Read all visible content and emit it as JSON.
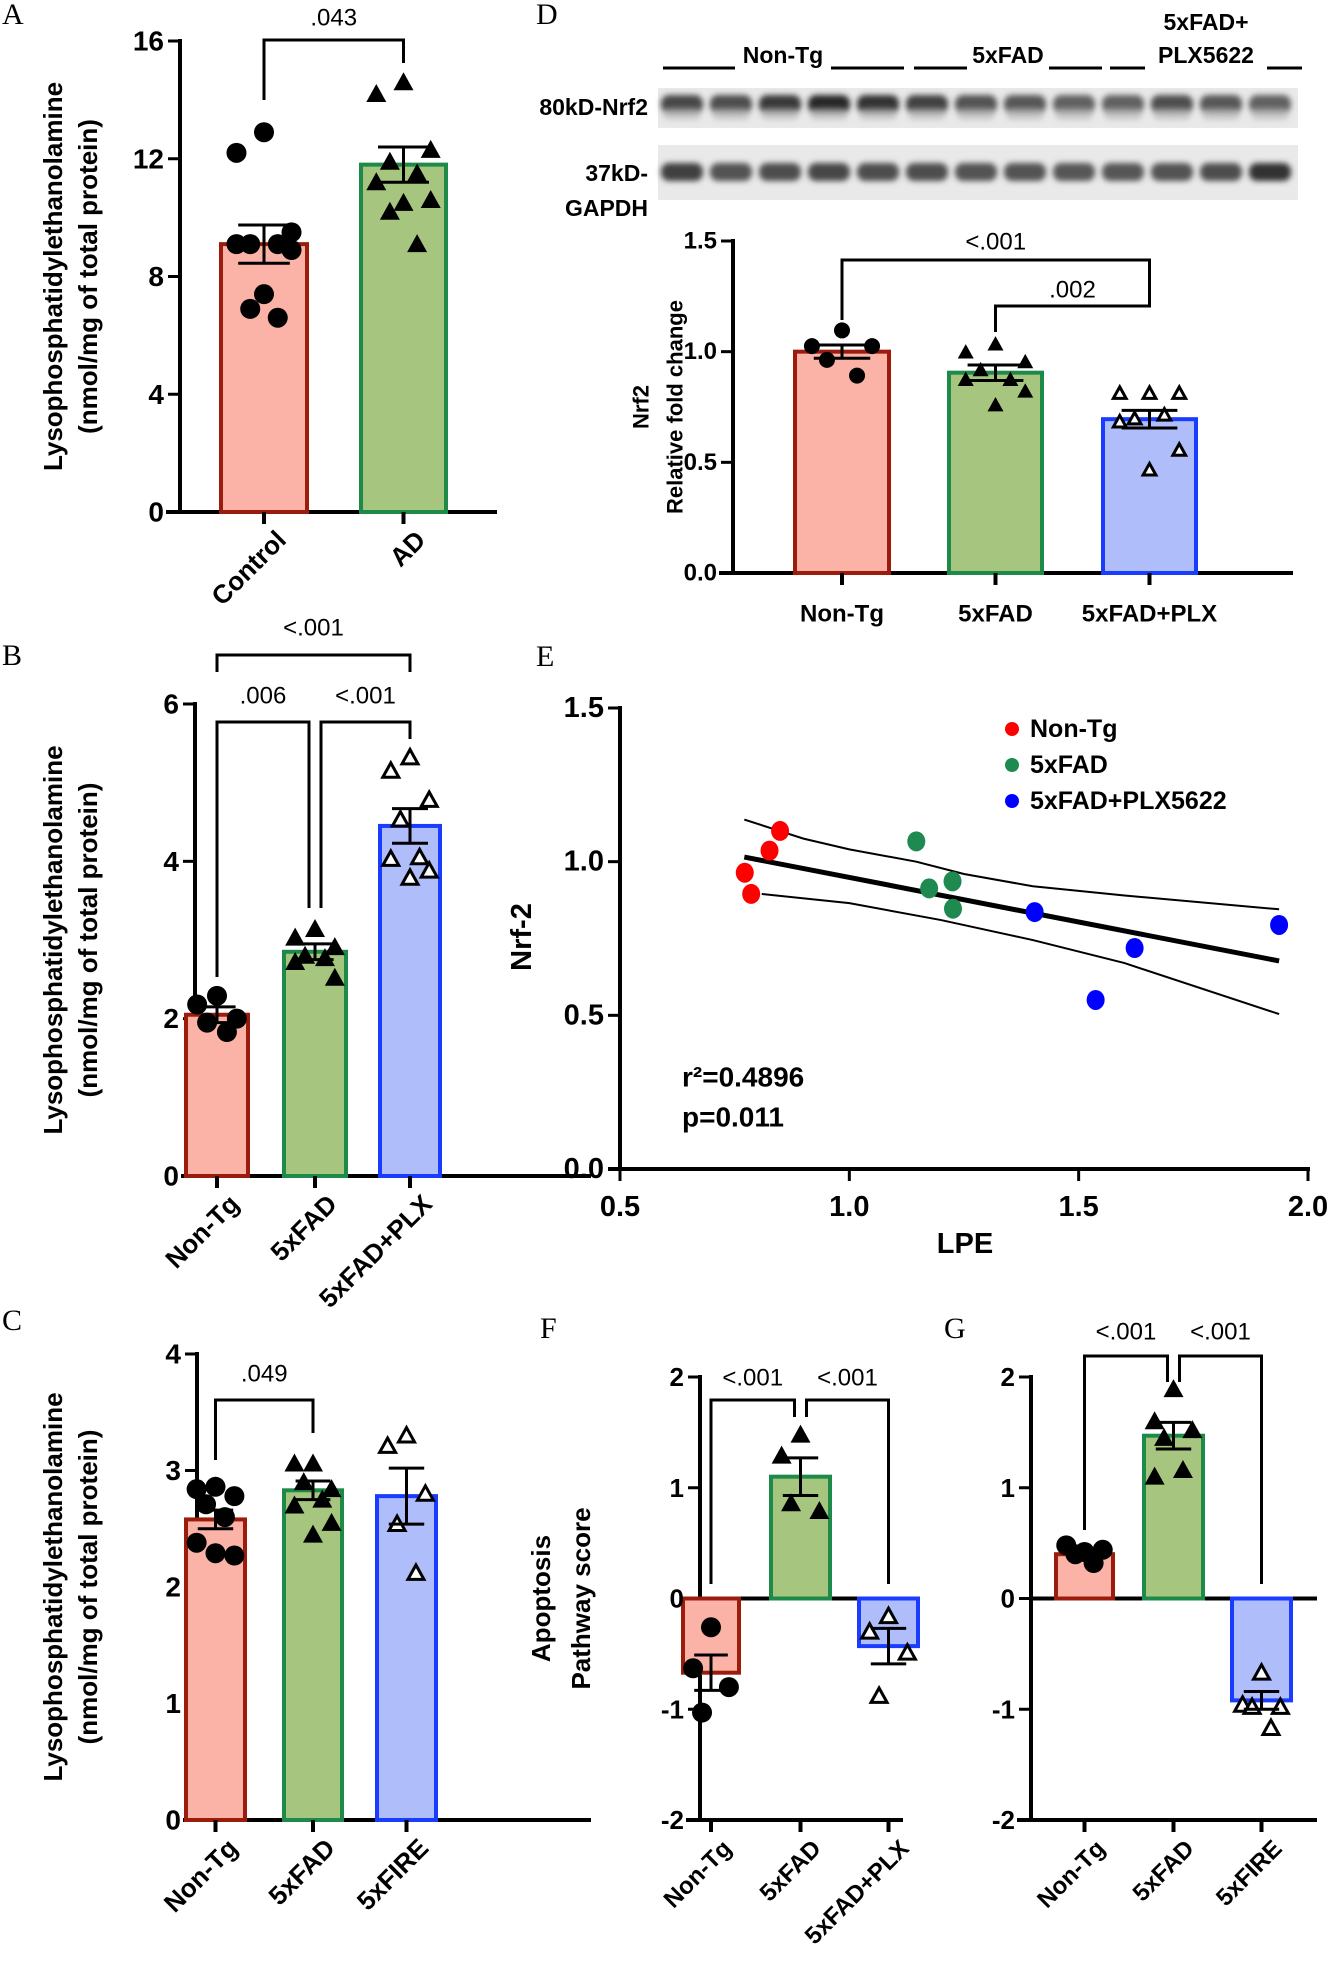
{
  "panel_labels": {
    "A": "A",
    "B": "B",
    "C": "C",
    "D": "D",
    "E": "E",
    "F": "F",
    "G": "G"
  },
  "colors": {
    "red_fill": "#fbb3a8",
    "red_stroke": "#9b1c0c",
    "green_fill": "#a6c67f",
    "green_stroke": "#1e8a4a",
    "blue_fill": "#afbdfb",
    "blue_stroke": "#1a3cff",
    "scatter_red": "#ff0000",
    "scatter_green": "#1f8a4f",
    "scatter_blue": "#0000ff"
  },
  "blot": {
    "groups": [
      {
        "label": "Non-Tg"
      },
      {
        "label": "5xFAD"
      },
      {
        "label_line1": "5xFAD+",
        "label": "PLX5622"
      }
    ],
    "rows": [
      {
        "label": "80kD-Nrf2"
      },
      {
        "label_line1": "37kD-",
        "label": "GAPDH"
      }
    ]
  },
  "chart_data": [
    {
      "id": "A",
      "type": "bar",
      "categories": [
        "Control",
        "AD"
      ],
      "means": [
        9.1,
        11.8
      ],
      "sem": [
        0.65,
        0.6
      ],
      "colors": [
        "red",
        "green"
      ],
      "markers": [
        "circle",
        "triangle"
      ],
      "points": [
        [
          12.9,
          12.2,
          9.5,
          9.1,
          9.1,
          9.1,
          8.9,
          7.4,
          6.9,
          6.6
        ],
        [
          14.6,
          14.2,
          12.3,
          11.9,
          11.5,
          11.2,
          10.6,
          10.5,
          10.2,
          9.1
        ]
      ],
      "ylim": [
        0,
        16
      ],
      "yticks": [
        "0",
        "4",
        "8",
        "12",
        "16"
      ],
      "ylabel": [
        "Lysophosphatidylethanolamine",
        "(nmol/mg of total protein)"
      ],
      "comparisons": [
        {
          "groups": [
            0,
            1
          ],
          "p": ".043"
        }
      ]
    },
    {
      "id": "B",
      "type": "bar",
      "categories": [
        "Non-Tg",
        "5xFAD",
        "5xFAD+PLX"
      ],
      "means": [
        2.05,
        2.85,
        4.45
      ],
      "sem": [
        0.1,
        0.1,
        0.22
      ],
      "colors": [
        "red",
        "green",
        "blue"
      ],
      "markers": [
        "circle",
        "triangle",
        "triangle-open"
      ],
      "points": [
        [
          2.29,
          2.18,
          2.0,
          1.95,
          1.83
        ],
        [
          3.14,
          3.03,
          2.91,
          2.8,
          2.77,
          2.72,
          2.52
        ],
        [
          5.32,
          5.15,
          4.78,
          4.53,
          4.05,
          4.03,
          3.88,
          3.79
        ]
      ],
      "ylim": [
        0,
        6
      ],
      "yticks": [
        "0",
        "2",
        "4",
        "6"
      ],
      "ylabel": [
        "Lysophosphatidylethanolamine",
        "(nmol/mg of total protein)"
      ],
      "comparisons": [
        {
          "groups": [
            0,
            2
          ],
          "p": "<.001"
        },
        {
          "groups": [
            0,
            1
          ],
          "p": ".006"
        },
        {
          "groups": [
            1,
            2
          ],
          "p": "<.001"
        }
      ]
    },
    {
      "id": "C",
      "type": "bar",
      "categories": [
        "Non-Tg",
        "5xFAD",
        "5xFIRE"
      ],
      "means": [
        2.58,
        2.83,
        2.78
      ],
      "sem": [
        0.08,
        0.08,
        0.24
      ],
      "colors": [
        "red",
        "green",
        "blue"
      ],
      "markers": [
        "circle",
        "triangle",
        "triangle-open"
      ],
      "points": [
        [
          2.86,
          2.84,
          2.78,
          2.71,
          2.6,
          2.38,
          2.27,
          2.29
        ],
        [
          3.06,
          3.06,
          2.84,
          2.9,
          2.75,
          2.7,
          2.55,
          2.45
        ],
        [
          3.3,
          3.21,
          2.8,
          2.54,
          2.12
        ]
      ],
      "ylim": [
        0,
        4
      ],
      "yticks": [
        "0",
        "1",
        "2",
        "3",
        "4"
      ],
      "ylabel": [
        "Lysophosphatidylethanolamine",
        "(nmol/mg of total protein)"
      ],
      "comparisons": [
        {
          "groups": [
            0,
            1
          ],
          "p": ".049"
        }
      ]
    },
    {
      "id": "D",
      "type": "bar",
      "categories": [
        "Non-Tg",
        "5xFAD",
        "5xFAD+PLX"
      ],
      "means": [
        1.0,
        0.905,
        0.695
      ],
      "sem": [
        0.03,
        0.035,
        0.04
      ],
      "colors": [
        "red",
        "green",
        "blue"
      ],
      "markers": [
        "circle",
        "triangle",
        "triangle-open"
      ],
      "points": [
        [
          1.096,
          1.025,
          1.025,
          0.963,
          0.892
        ],
        [
          1.034,
          0.998,
          0.954,
          0.918,
          0.874,
          0.874,
          0.821,
          0.759
        ],
        [
          0.812,
          0.812,
          0.812,
          0.697,
          0.714,
          0.683,
          0.555,
          0.466
        ]
      ],
      "ylim": [
        0,
        1.5
      ],
      "yticks": [
        "0.0",
        "0.5",
        "1.0",
        "1.5"
      ],
      "ylabel": [
        "Nrf2",
        "Relative fold change"
      ],
      "comparisons": [
        {
          "groups": [
            0,
            2
          ],
          "p": "<.001"
        },
        {
          "groups": [
            1,
            2
          ],
          "p": ".002"
        }
      ]
    },
    {
      "id": "E",
      "type": "scatter",
      "series": [
        {
          "name": "Non-Tg",
          "color": "#ff0000",
          "points": [
            [
              0.772,
              0.964
            ],
            [
              0.786,
              0.895
            ],
            [
              0.826,
              1.036
            ],
            [
              0.849,
              1.1
            ]
          ]
        },
        {
          "name": "5xFAD",
          "color": "#1f8a4f",
          "points": [
            [
              1.146,
              1.066
            ],
            [
              1.174,
              0.913
            ],
            [
              1.225,
              0.936
            ],
            [
              1.226,
              0.847
            ]
          ]
        },
        {
          "name": "5xFAD+PLX5622",
          "color": "#0000ff",
          "points": [
            [
              1.404,
              0.836
            ],
            [
              1.537,
              0.55
            ],
            [
              1.622,
              0.719
            ],
            [
              1.937,
              0.794
            ]
          ]
        }
      ],
      "fit": {
        "line": [
          [
            0.771,
            1.015
          ],
          [
            1.937,
            0.677
          ]
        ],
        "ci_upper": [
          [
            0.771,
            1.137
          ],
          [
            0.9,
            1.075
          ],
          [
            1.0,
            1.04
          ],
          [
            1.146,
            1.0
          ],
          [
            1.25,
            0.96
          ],
          [
            1.4,
            0.92
          ],
          [
            1.6,
            0.89
          ],
          [
            1.937,
            0.845
          ]
        ],
        "ci_lower": [
          [
            0.809,
            0.895
          ],
          [
            1.0,
            0.865
          ],
          [
            1.2,
            0.81
          ],
          [
            1.4,
            0.745
          ],
          [
            1.6,
            0.67
          ],
          [
            1.937,
            0.504
          ]
        ]
      },
      "xlim": [
        0.5,
        2.0
      ],
      "ylim": [
        0,
        1.5
      ],
      "xticks": [
        "0.5",
        "1.0",
        "1.5",
        "2.0"
      ],
      "yticks": [
        "0.0",
        "0.5",
        "1.0",
        "1.5"
      ],
      "xlabel": "LPE",
      "ylabel": "Nrf-2",
      "legend": "top-right",
      "annotation": {
        "r2": "r²=0.4896",
        "p": "p=0.011"
      }
    },
    {
      "id": "F",
      "type": "bar",
      "categories": [
        "Non-Tg",
        "5xFAD",
        "5xFAD+PLX"
      ],
      "means": [
        -0.67,
        1.1,
        -0.43
      ],
      "sem": [
        0.16,
        0.17,
        0.16
      ],
      "colors": [
        "red",
        "green",
        "blue"
      ],
      "markers": [
        "circle",
        "triangle",
        "triangle-open"
      ],
      "points": [
        [
          -0.26,
          -0.63,
          -0.8,
          -1.03
        ],
        [
          1.48,
          1.29,
          0.79,
          0.86
        ],
        [
          -0.16,
          -0.3,
          -0.49,
          -0.88
        ]
      ],
      "ylim": [
        -2,
        2
      ],
      "yticks": [
        "-2",
        "-1",
        "0",
        "1",
        "2"
      ],
      "ylabel": [
        "Apoptosis",
        "Pathway score"
      ],
      "comparisons": [
        {
          "groups": [
            0,
            1
          ],
          "p": "<.001"
        },
        {
          "groups": [
            1,
            2
          ],
          "p": "<.001"
        }
      ]
    },
    {
      "id": "G",
      "type": "bar",
      "categories": [
        "Non-Tg",
        "5xFAD",
        "5xFIRE"
      ],
      "means": [
        0.4,
        1.47,
        -0.92
      ],
      "sem": [
        0.03,
        0.12,
        0.08
      ],
      "colors": [
        "red",
        "green",
        "blue"
      ],
      "markers": [
        "circle",
        "triangle",
        "triangle-open"
      ],
      "points": [
        [
          0.42,
          0.48,
          0.44,
          0.4,
          0.32
        ],
        [
          1.89,
          1.6,
          1.52,
          1.45,
          1.16,
          1.1
        ],
        [
          -0.67,
          -0.96,
          -0.98,
          -0.98,
          -1.17
        ]
      ],
      "ylim": [
        -2,
        2
      ],
      "yticks": [
        "-2",
        "-1",
        "0",
        "1",
        "2"
      ],
      "ylabel": [],
      "comparisons": [
        {
          "groups": [
            0,
            1
          ],
          "p": "<.001"
        },
        {
          "groups": [
            1,
            2
          ],
          "p": "<.001"
        }
      ]
    }
  ]
}
